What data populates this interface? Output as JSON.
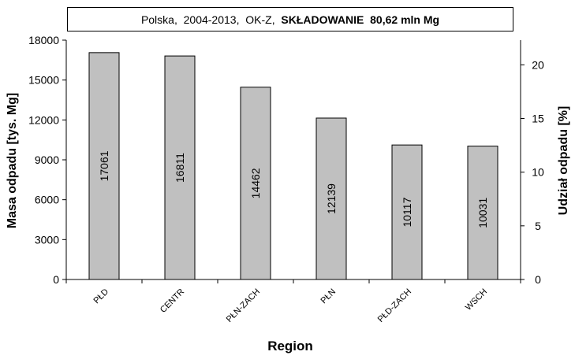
{
  "chart_data": {
    "type": "bar",
    "title_prefix": "Polska,  2004-2013,  OK-Z,  ",
    "title_bold": "SKŁADOWANIE  80,62 mln Mg",
    "xlabel": "Region",
    "ylabel": "Masa odpadu  [tys. Mg]",
    "y2label": "Udział odpadu  [%]",
    "categories": [
      "PŁD",
      "CENTR",
      "PŁN-ZACH",
      "PŁN",
      "PŁD-ZACH",
      "WSCH"
    ],
    "values": [
      17061,
      16811,
      14462,
      12139,
      10117,
      10031
    ],
    "ylim": [
      0,
      18000
    ],
    "yticks": [
      0,
      3000,
      6000,
      9000,
      12000,
      15000,
      18000
    ],
    "y2lim": [
      0,
      22.3
    ],
    "y2ticks": [
      0,
      5,
      10,
      15,
      20
    ],
    "bar_color": "#c0c0c0",
    "grid": false
  }
}
